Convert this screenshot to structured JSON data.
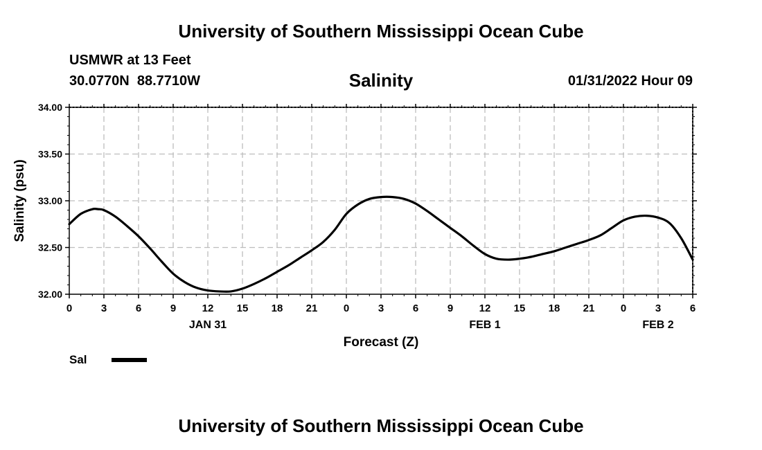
{
  "header": {
    "title": "University of Southern Mississippi Ocean Cube",
    "station": "USMWR at 13 Feet",
    "coordinates": "30.0770N  88.7710W",
    "datetime": "01/31/2022 Hour 09"
  },
  "footer": {
    "title": "University of Southern Mississippi Ocean Cube"
  },
  "chart_data": {
    "type": "line",
    "title": "Salinity",
    "xlabel": "Forecast (Z)",
    "ylabel": "Salinity (psu)",
    "x_unit": "hours from 2022-01-31 00Z",
    "xlim": [
      0,
      54
    ],
    "ylim": [
      32.0,
      34.0
    ],
    "x_ticks": [
      0,
      3,
      6,
      9,
      12,
      15,
      18,
      21,
      24,
      27,
      30,
      33,
      36,
      39,
      42,
      45,
      48,
      51,
      54
    ],
    "x_tick_labels": [
      "0",
      "3",
      "6",
      "9",
      "12",
      "15",
      "18",
      "21",
      "0",
      "3",
      "6",
      "9",
      "12",
      "15",
      "18",
      "21",
      "0",
      "3",
      "6"
    ],
    "y_ticks": [
      32.0,
      32.5,
      33.0,
      33.5,
      34.0
    ],
    "y_tick_labels": [
      "32.00",
      "32.50",
      "33.00",
      "33.50",
      "34.00"
    ],
    "date_labels": [
      {
        "x": 12,
        "label": "JAN 31"
      },
      {
        "x": 36,
        "label": "FEB 1"
      },
      {
        "x": 51,
        "label": "FEB 2"
      }
    ],
    "grid": true,
    "legend": [
      {
        "name": "Sal",
        "color": "#000000"
      }
    ],
    "series": [
      {
        "name": "Sal",
        "color": "#000000",
        "x": [
          0,
          1,
          2,
          2.5,
          3,
          4,
          5,
          6,
          7,
          8,
          9,
          10,
          11,
          12,
          13,
          14,
          15,
          16,
          17,
          18,
          19,
          20,
          21,
          22,
          23,
          24,
          25,
          26,
          27,
          28,
          29,
          30,
          31,
          32,
          33,
          34,
          35,
          36,
          37,
          38,
          39,
          40,
          41,
          42,
          43,
          44,
          45,
          46,
          47,
          48,
          49,
          50,
          51,
          52,
          53,
          54
        ],
        "values": [
          32.75,
          32.86,
          32.91,
          32.91,
          32.9,
          32.83,
          32.73,
          32.62,
          32.49,
          32.35,
          32.22,
          32.13,
          32.07,
          32.04,
          32.03,
          32.03,
          32.06,
          32.11,
          32.17,
          32.24,
          32.31,
          32.39,
          32.47,
          32.56,
          32.69,
          32.86,
          32.96,
          33.02,
          33.04,
          33.04,
          33.02,
          32.97,
          32.89,
          32.8,
          32.71,
          32.62,
          32.52,
          32.43,
          32.38,
          32.37,
          32.38,
          32.4,
          32.43,
          32.46,
          32.5,
          32.54,
          32.58,
          32.63,
          32.71,
          32.79,
          32.83,
          32.84,
          32.82,
          32.76,
          32.6,
          32.37
        ]
      }
    ]
  }
}
